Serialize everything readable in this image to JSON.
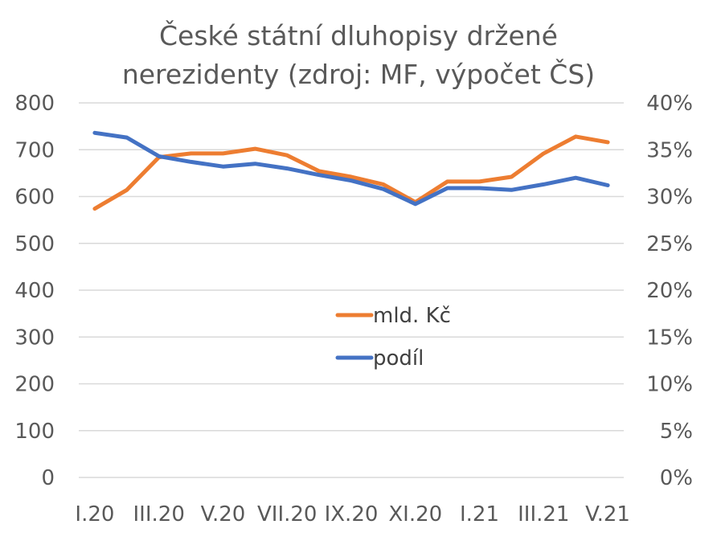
{
  "chart_data": {
    "type": "line",
    "title_lines": [
      "České státní dluhopisy držené",
      "nerezidenty (zdroj: MF, výpočet ČS)"
    ],
    "categories": [
      "I.20",
      "II.20",
      "III.20",
      "IV.20",
      "V.20",
      "VI.20",
      "VII.20",
      "VIII.20",
      "IX.20",
      "X.20",
      "XI.20",
      "XII.20",
      "I.21",
      "II.21",
      "III.21",
      "IV.21",
      "V.21"
    ],
    "x_tick_labels": [
      "I.20",
      "",
      "III.20",
      "",
      "V.20",
      "",
      "VII.20",
      "",
      "IX.20",
      "",
      "XI.20",
      "",
      "I.21",
      "",
      "III.21",
      "",
      "V.21"
    ],
    "y_left": {
      "min": 0,
      "max": 800,
      "step": 100,
      "tick_labels": [
        "0",
        "100",
        "200",
        "300",
        "400",
        "500",
        "600",
        "700",
        "800"
      ]
    },
    "y_right": {
      "min": 0,
      "max": 0.4,
      "step": 0.05,
      "tick_labels": [
        "0%",
        "5%",
        "10%",
        "15%",
        "20%",
        "25%",
        "30%",
        "35%",
        "40%"
      ]
    },
    "grid": true,
    "legend_position": "center",
    "series": [
      {
        "name": "mld. Kč",
        "axis": "left",
        "color": "#ED7D31",
        "values": [
          574,
          614,
          684,
          692,
          692,
          702,
          688,
          654,
          642,
          626,
          588,
          632,
          632,
          642,
          692,
          728,
          716
        ]
      },
      {
        "name": "podíl",
        "axis": "right",
        "color": "#4472C4",
        "values": [
          0.368,
          0.363,
          0.343,
          0.337,
          0.332,
          0.335,
          0.33,
          0.323,
          0.317,
          0.308,
          0.292,
          0.309,
          0.309,
          0.307,
          0.313,
          0.32,
          0.312
        ]
      }
    ]
  }
}
